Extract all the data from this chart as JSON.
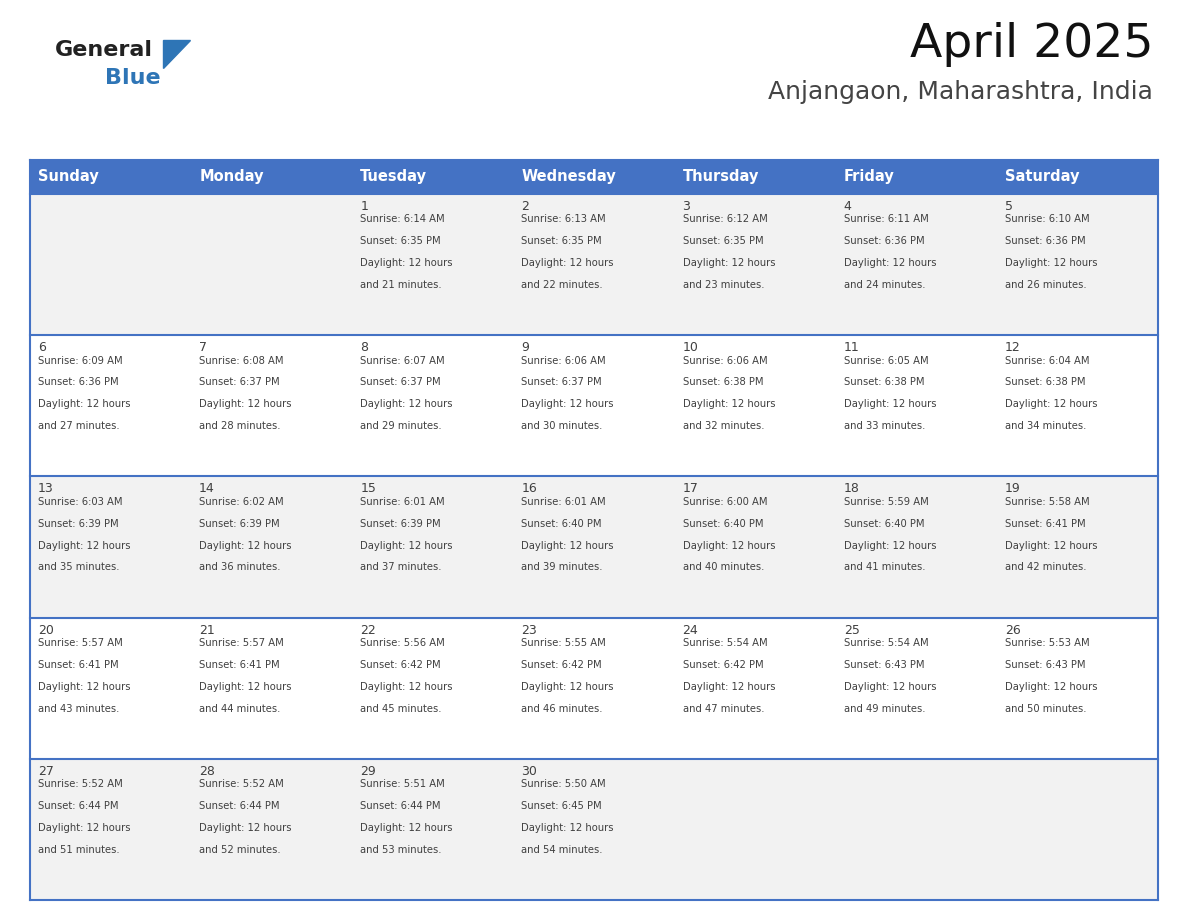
{
  "title": "April 2025",
  "subtitle": "Anjangaon, Maharashtra, India",
  "header_bg": "#4472C4",
  "header_text_color": "#FFFFFF",
  "header_font_size": 10.5,
  "day_headers": [
    "Sunday",
    "Monday",
    "Tuesday",
    "Wednesday",
    "Thursday",
    "Friday",
    "Saturday"
  ],
  "title_font_size": 34,
  "subtitle_font_size": 18,
  "background_color": "#FFFFFF",
  "cell_bg_row0": "#F2F2F2",
  "cell_bg_row1": "#FFFFFF",
  "cell_bg_row2": "#F2F2F2",
  "cell_bg_row3": "#FFFFFF",
  "cell_bg_row4": "#F2F2F2",
  "grid_color": "#4472C4",
  "text_color": "#404040",
  "date_font_size": 9,
  "info_font_size": 7.2,
  "logo_general_color": "#222222",
  "logo_blue_color": "#2E75B6",
  "logo_triangle_color": "#2E75B6",
  "days": [
    {
      "date": 1,
      "col": 2,
      "row": 0,
      "sunrise": "6:14 AM",
      "sunset": "6:35 PM",
      "daylight_line1": "Daylight: 12 hours",
      "daylight_line2": "and 21 minutes."
    },
    {
      "date": 2,
      "col": 3,
      "row": 0,
      "sunrise": "6:13 AM",
      "sunset": "6:35 PM",
      "daylight_line1": "Daylight: 12 hours",
      "daylight_line2": "and 22 minutes."
    },
    {
      "date": 3,
      "col": 4,
      "row": 0,
      "sunrise": "6:12 AM",
      "sunset": "6:35 PM",
      "daylight_line1": "Daylight: 12 hours",
      "daylight_line2": "and 23 minutes."
    },
    {
      "date": 4,
      "col": 5,
      "row": 0,
      "sunrise": "6:11 AM",
      "sunset": "6:36 PM",
      "daylight_line1": "Daylight: 12 hours",
      "daylight_line2": "and 24 minutes."
    },
    {
      "date": 5,
      "col": 6,
      "row": 0,
      "sunrise": "6:10 AM",
      "sunset": "6:36 PM",
      "daylight_line1": "Daylight: 12 hours",
      "daylight_line2": "and 26 minutes."
    },
    {
      "date": 6,
      "col": 0,
      "row": 1,
      "sunrise": "6:09 AM",
      "sunset": "6:36 PM",
      "daylight_line1": "Daylight: 12 hours",
      "daylight_line2": "and 27 minutes."
    },
    {
      "date": 7,
      "col": 1,
      "row": 1,
      "sunrise": "6:08 AM",
      "sunset": "6:37 PM",
      "daylight_line1": "Daylight: 12 hours",
      "daylight_line2": "and 28 minutes."
    },
    {
      "date": 8,
      "col": 2,
      "row": 1,
      "sunrise": "6:07 AM",
      "sunset": "6:37 PM",
      "daylight_line1": "Daylight: 12 hours",
      "daylight_line2": "and 29 minutes."
    },
    {
      "date": 9,
      "col": 3,
      "row": 1,
      "sunrise": "6:06 AM",
      "sunset": "6:37 PM",
      "daylight_line1": "Daylight: 12 hours",
      "daylight_line2": "and 30 minutes."
    },
    {
      "date": 10,
      "col": 4,
      "row": 1,
      "sunrise": "6:06 AM",
      "sunset": "6:38 PM",
      "daylight_line1": "Daylight: 12 hours",
      "daylight_line2": "and 32 minutes."
    },
    {
      "date": 11,
      "col": 5,
      "row": 1,
      "sunrise": "6:05 AM",
      "sunset": "6:38 PM",
      "daylight_line1": "Daylight: 12 hours",
      "daylight_line2": "and 33 minutes."
    },
    {
      "date": 12,
      "col": 6,
      "row": 1,
      "sunrise": "6:04 AM",
      "sunset": "6:38 PM",
      "daylight_line1": "Daylight: 12 hours",
      "daylight_line2": "and 34 minutes."
    },
    {
      "date": 13,
      "col": 0,
      "row": 2,
      "sunrise": "6:03 AM",
      "sunset": "6:39 PM",
      "daylight_line1": "Daylight: 12 hours",
      "daylight_line2": "and 35 minutes."
    },
    {
      "date": 14,
      "col": 1,
      "row": 2,
      "sunrise": "6:02 AM",
      "sunset": "6:39 PM",
      "daylight_line1": "Daylight: 12 hours",
      "daylight_line2": "and 36 minutes."
    },
    {
      "date": 15,
      "col": 2,
      "row": 2,
      "sunrise": "6:01 AM",
      "sunset": "6:39 PM",
      "daylight_line1": "Daylight: 12 hours",
      "daylight_line2": "and 37 minutes."
    },
    {
      "date": 16,
      "col": 3,
      "row": 2,
      "sunrise": "6:01 AM",
      "sunset": "6:40 PM",
      "daylight_line1": "Daylight: 12 hours",
      "daylight_line2": "and 39 minutes."
    },
    {
      "date": 17,
      "col": 4,
      "row": 2,
      "sunrise": "6:00 AM",
      "sunset": "6:40 PM",
      "daylight_line1": "Daylight: 12 hours",
      "daylight_line2": "and 40 minutes."
    },
    {
      "date": 18,
      "col": 5,
      "row": 2,
      "sunrise": "5:59 AM",
      "sunset": "6:40 PM",
      "daylight_line1": "Daylight: 12 hours",
      "daylight_line2": "and 41 minutes."
    },
    {
      "date": 19,
      "col": 6,
      "row": 2,
      "sunrise": "5:58 AM",
      "sunset": "6:41 PM",
      "daylight_line1": "Daylight: 12 hours",
      "daylight_line2": "and 42 minutes."
    },
    {
      "date": 20,
      "col": 0,
      "row": 3,
      "sunrise": "5:57 AM",
      "sunset": "6:41 PM",
      "daylight_line1": "Daylight: 12 hours",
      "daylight_line2": "and 43 minutes."
    },
    {
      "date": 21,
      "col": 1,
      "row": 3,
      "sunrise": "5:57 AM",
      "sunset": "6:41 PM",
      "daylight_line1": "Daylight: 12 hours",
      "daylight_line2": "and 44 minutes."
    },
    {
      "date": 22,
      "col": 2,
      "row": 3,
      "sunrise": "5:56 AM",
      "sunset": "6:42 PM",
      "daylight_line1": "Daylight: 12 hours",
      "daylight_line2": "and 45 minutes."
    },
    {
      "date": 23,
      "col": 3,
      "row": 3,
      "sunrise": "5:55 AM",
      "sunset": "6:42 PM",
      "daylight_line1": "Daylight: 12 hours",
      "daylight_line2": "and 46 minutes."
    },
    {
      "date": 24,
      "col": 4,
      "row": 3,
      "sunrise": "5:54 AM",
      "sunset": "6:42 PM",
      "daylight_line1": "Daylight: 12 hours",
      "daylight_line2": "and 47 minutes."
    },
    {
      "date": 25,
      "col": 5,
      "row": 3,
      "sunrise": "5:54 AM",
      "sunset": "6:43 PM",
      "daylight_line1": "Daylight: 12 hours",
      "daylight_line2": "and 49 minutes."
    },
    {
      "date": 26,
      "col": 6,
      "row": 3,
      "sunrise": "5:53 AM",
      "sunset": "6:43 PM",
      "daylight_line1": "Daylight: 12 hours",
      "daylight_line2": "and 50 minutes."
    },
    {
      "date": 27,
      "col": 0,
      "row": 4,
      "sunrise": "5:52 AM",
      "sunset": "6:44 PM",
      "daylight_line1": "Daylight: 12 hours",
      "daylight_line2": "and 51 minutes."
    },
    {
      "date": 28,
      "col": 1,
      "row": 4,
      "sunrise": "5:52 AM",
      "sunset": "6:44 PM",
      "daylight_line1": "Daylight: 12 hours",
      "daylight_line2": "and 52 minutes."
    },
    {
      "date": 29,
      "col": 2,
      "row": 4,
      "sunrise": "5:51 AM",
      "sunset": "6:44 PM",
      "daylight_line1": "Daylight: 12 hours",
      "daylight_line2": "and 53 minutes."
    },
    {
      "date": 30,
      "col": 3,
      "row": 4,
      "sunrise": "5:50 AM",
      "sunset": "6:45 PM",
      "daylight_line1": "Daylight: 12 hours",
      "daylight_line2": "and 54 minutes."
    }
  ]
}
